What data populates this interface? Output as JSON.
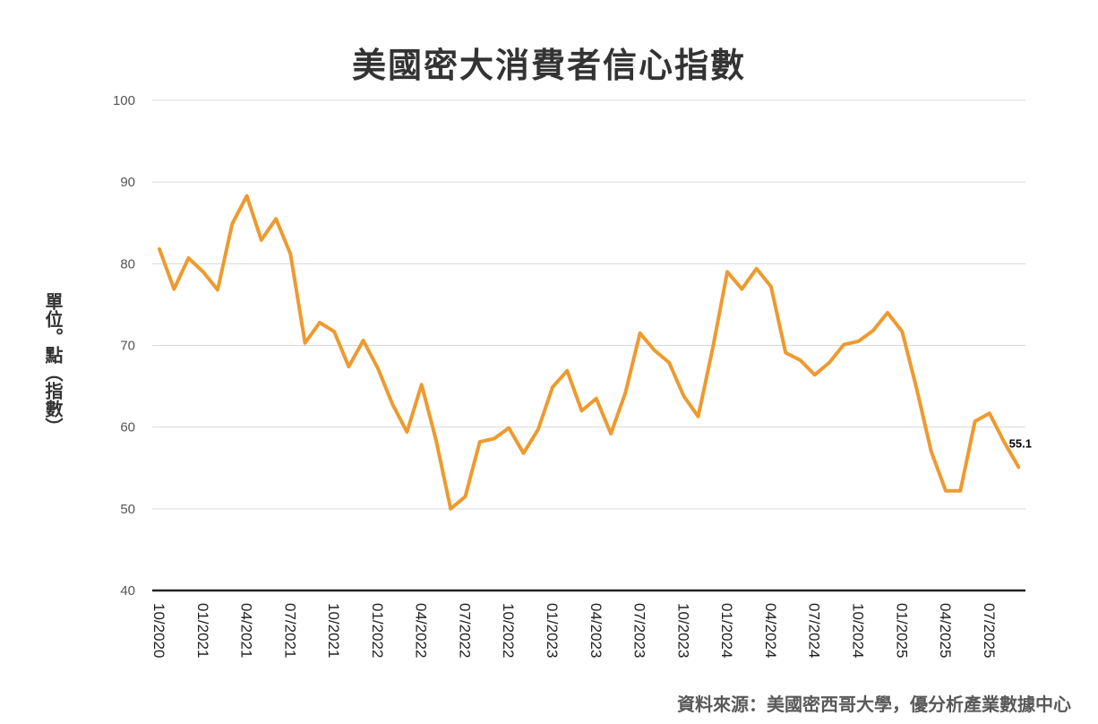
{
  "chart_data": {
    "type": "line",
    "title": "美國密大消費者信心指數",
    "ylabel": "單位。點（指數）",
    "xlabel": "",
    "source": "資料來源：美國密西哥大學，優分析產業數據中心",
    "ylim": [
      40,
      100
    ],
    "yticks": [
      "100",
      "90",
      "80",
      "70",
      "60",
      "50",
      "40"
    ],
    "grid": true,
    "legend": "none",
    "line_color": "#EE9A2E",
    "x_tick_labels": [
      "10/2020",
      "01/2021",
      "04/2021",
      "07/2021",
      "10/2021",
      "01/2022",
      "04/2022",
      "07/2022",
      "10/2022",
      "01/2023",
      "04/2023",
      "07/2023",
      "10/2023",
      "01/2024",
      "04/2024",
      "07/2024",
      "10/2024",
      "01/2025",
      "04/2025",
      "07/2025"
    ],
    "x": [
      "10/2020",
      "11/2020",
      "12/2020",
      "01/2021",
      "02/2021",
      "03/2021",
      "04/2021",
      "05/2021",
      "06/2021",
      "07/2021",
      "08/2021",
      "09/2021",
      "10/2021",
      "11/2021",
      "12/2021",
      "01/2022",
      "02/2022",
      "03/2022",
      "04/2022",
      "05/2022",
      "06/2022",
      "07/2022",
      "08/2022",
      "09/2022",
      "10/2022",
      "11/2022",
      "12/2022",
      "01/2023",
      "02/2023",
      "03/2023",
      "04/2023",
      "05/2023",
      "06/2023",
      "07/2023",
      "08/2023",
      "09/2023",
      "10/2023",
      "11/2023",
      "12/2023",
      "01/2024",
      "02/2024",
      "03/2024",
      "04/2024",
      "05/2024",
      "06/2024",
      "07/2024",
      "08/2024",
      "09/2024",
      "10/2024",
      "11/2024",
      "12/2024",
      "01/2025",
      "02/2025",
      "03/2025",
      "04/2025",
      "05/2025",
      "06/2025",
      "07/2025",
      "08/2025",
      "09/2025"
    ],
    "series": [
      {
        "values": [
          81.8,
          76.9,
          80.7,
          79.0,
          76.8,
          84.9,
          88.3,
          82.9,
          85.5,
          81.2,
          70.3,
          72.8,
          71.7,
          67.4,
          70.6,
          67.2,
          62.8,
          59.4,
          65.2,
          58.4,
          50.0,
          51.5,
          58.2,
          58.6,
          59.9,
          56.8,
          59.7,
          64.9,
          66.9,
          62.0,
          63.5,
          59.2,
          64.2,
          71.5,
          69.4,
          67.9,
          63.8,
          61.3,
          69.7,
          79.0,
          76.9,
          79.4,
          77.2,
          69.1,
          68.2,
          66.4,
          67.9,
          70.1,
          70.5,
          71.8,
          74.0,
          71.7,
          64.7,
          57.0,
          52.2,
          52.2,
          60.7,
          61.7,
          58.2,
          55.1
        ]
      }
    ],
    "annotations": [
      {
        "text": "55.1",
        "x": "09/2025",
        "y": 55.1
      }
    ]
  }
}
